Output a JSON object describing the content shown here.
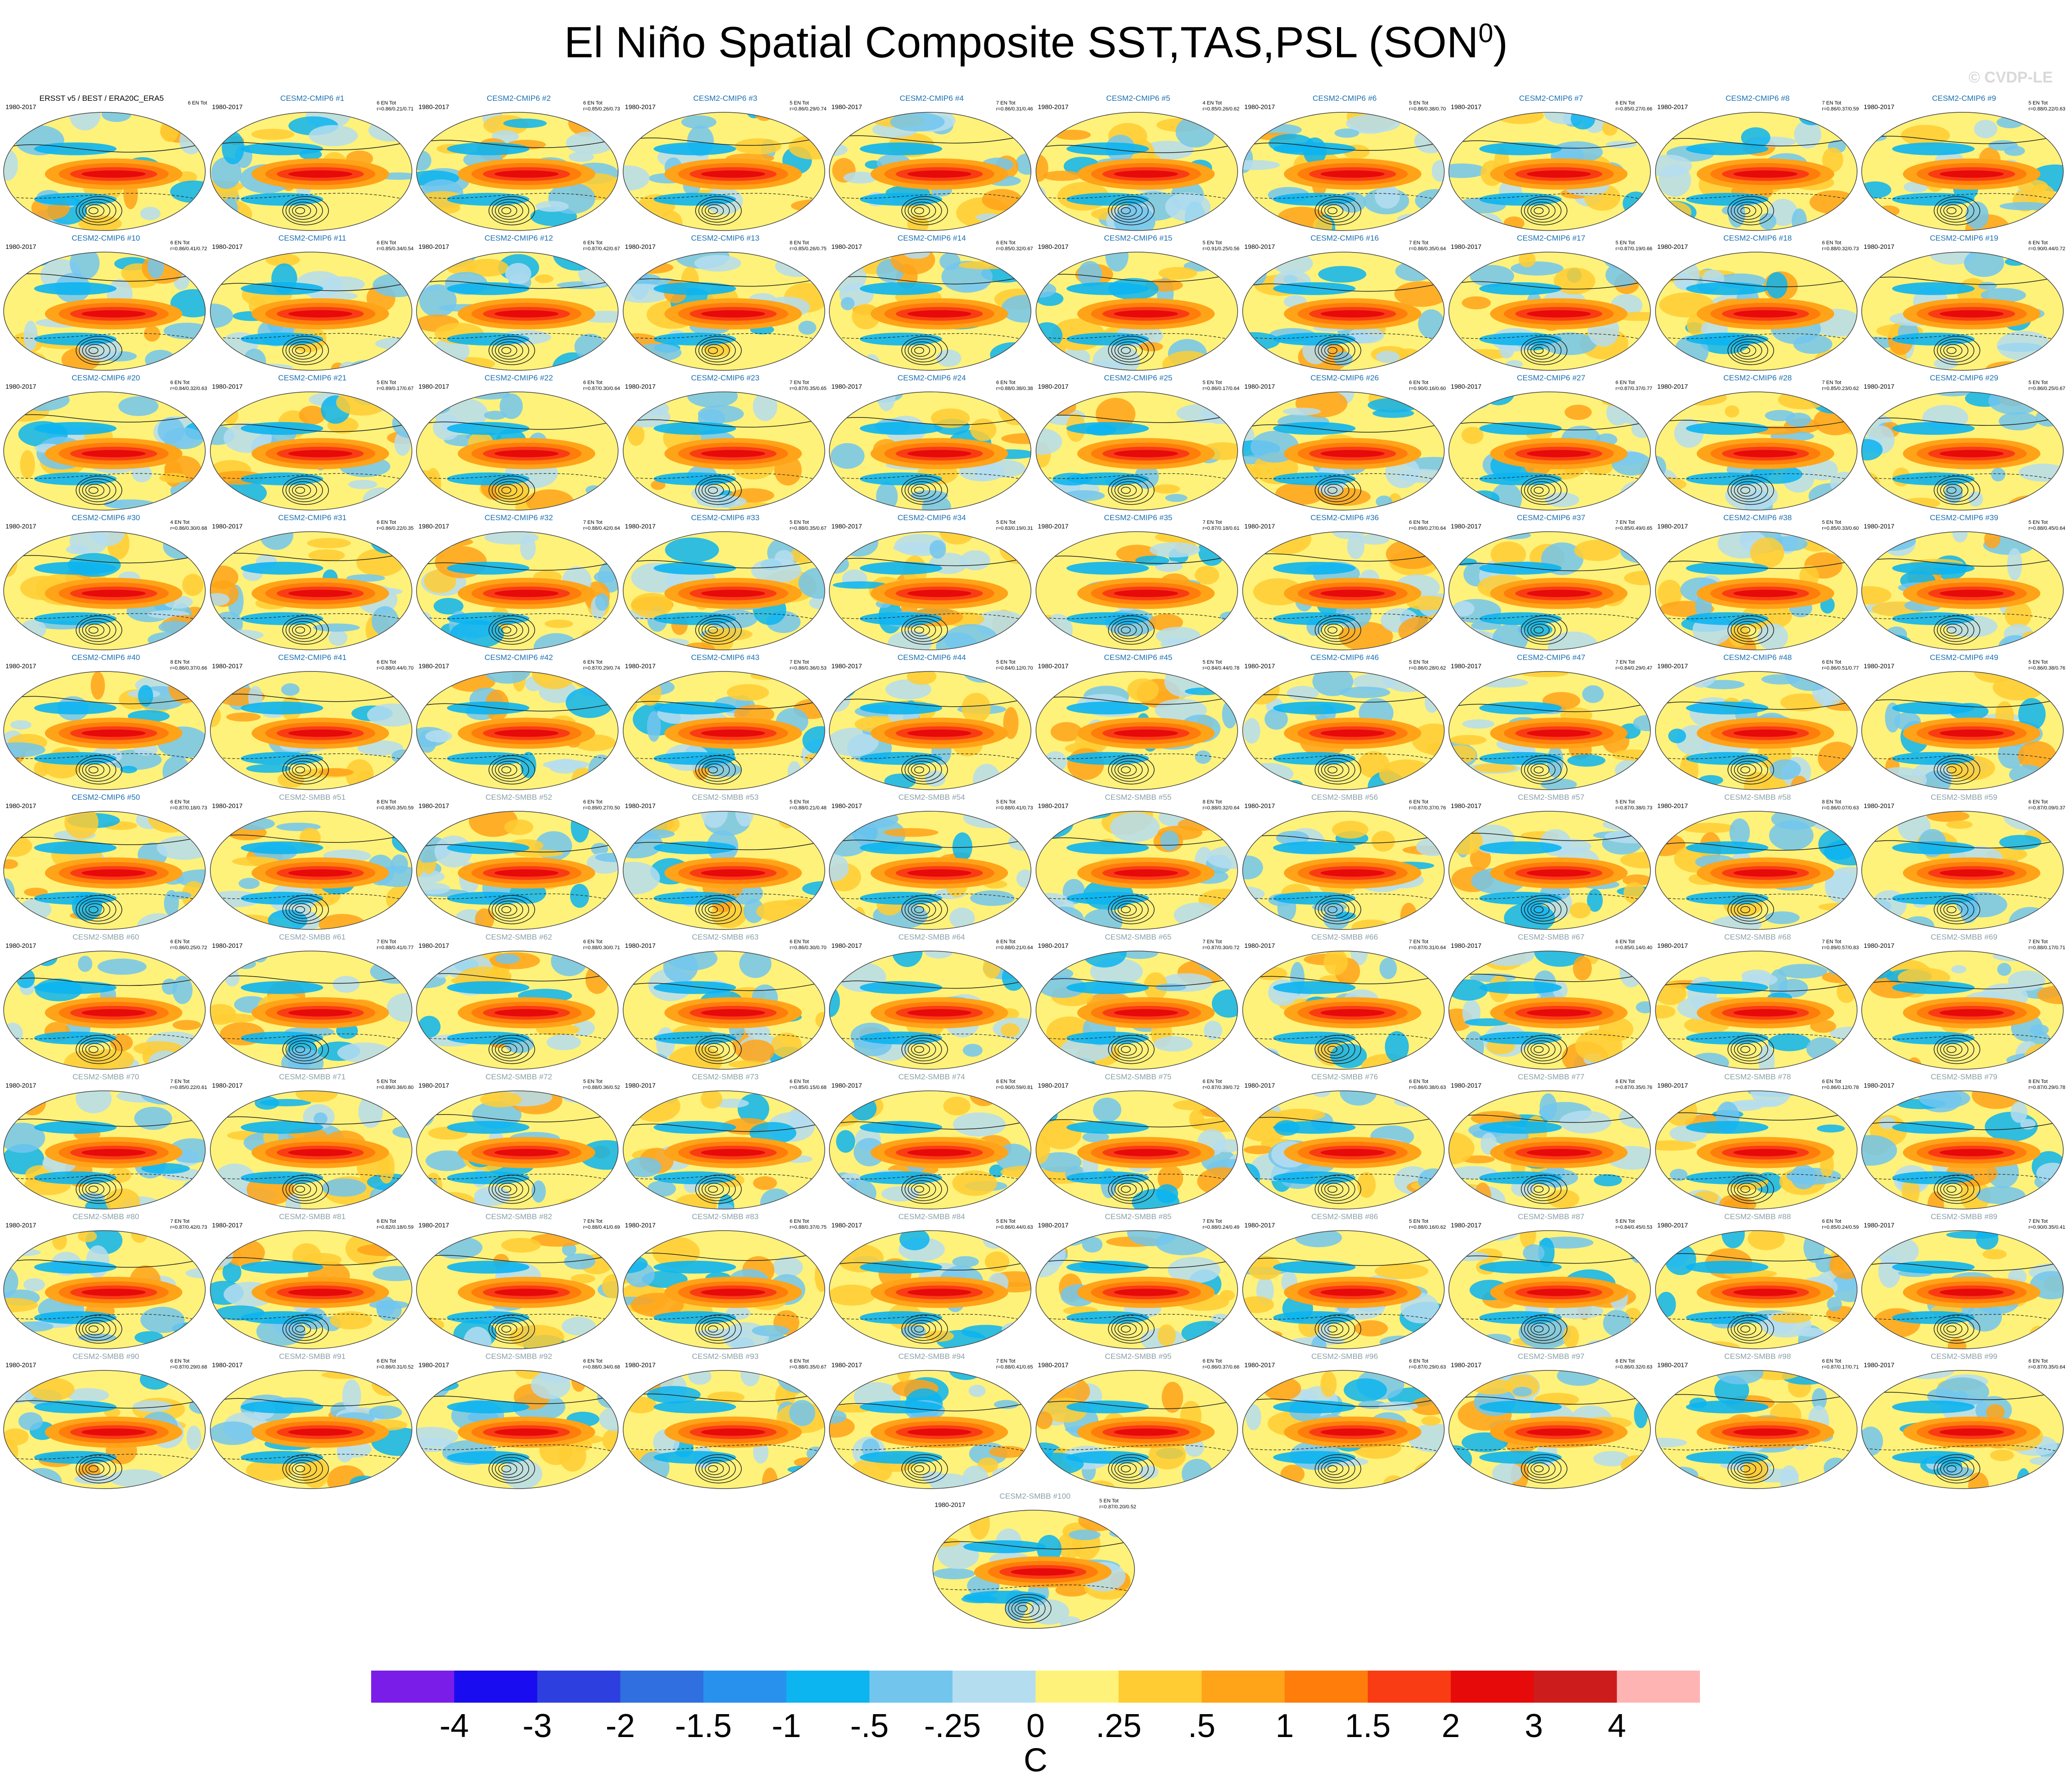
{
  "title": "El Niño Spatial Composite SST,TAS,PSL (SON",
  "title_superscript": "0",
  "title_close": ")",
  "watermark": "© CVDP-LE",
  "chart_data": {
    "type": "heatmap",
    "panel_count": 101,
    "map_projection": "global ellipse",
    "shading_variable": "SST/TAS composite",
    "contour_variable": "PSL composite",
    "panels": [
      {
        "title": "ERSST v5 / BEST / ERA20C_ERA5",
        "years": "1980-2017",
        "stats": "6 EN Tot",
        "kind": "obs"
      },
      {
        "title": "CESM2-CMIP6 #1",
        "years": "1980-2017",
        "stats": "6 EN Tot\nr=0.86/0.21/0.71",
        "kind": "cmip6"
      },
      {
        "title": "CESM2-CMIP6 #2",
        "years": "1980-2017",
        "stats": "6 EN Tot\nr=0.85/0.26/0.73",
        "kind": "cmip6"
      },
      {
        "title": "CESM2-CMIP6 #3",
        "years": "1980-2017",
        "stats": "5 EN Tot\nr=0.86/0.29/0.74",
        "kind": "cmip6"
      },
      {
        "title": "CESM2-CMIP6 #4",
        "years": "1980-2017",
        "stats": "7 EN Tot\nr=0.86/0.31/0.46",
        "kind": "cmip6"
      },
      {
        "title": "CESM2-CMIP6 #5",
        "years": "1980-2017",
        "stats": "4 EN Tot\nr=0.85/0.26/0.62",
        "kind": "cmip6"
      },
      {
        "title": "CESM2-CMIP6 #6",
        "years": "1980-2017",
        "stats": "5 EN Tot\nr=0.86/0.38/0.70",
        "kind": "cmip6"
      },
      {
        "title": "CESM2-CMIP6 #7",
        "years": "1980-2017",
        "stats": "6 EN Tot\nr=0.85/0.27/0.66",
        "kind": "cmip6"
      },
      {
        "title": "CESM2-CMIP6 #8",
        "years": "1980-2017",
        "stats": "7 EN Tot\nr=0.86/0.37/0.59",
        "kind": "cmip6"
      },
      {
        "title": "CESM2-CMIP6 #9",
        "years": "1980-2017",
        "stats": "5 EN Tot\nr=0.88/0.22/0.63",
        "kind": "cmip6"
      },
      {
        "title": "CESM2-CMIP6 #10",
        "years": "1980-2017",
        "stats": "6 EN Tot\nr=0.86/0.41/0.72",
        "kind": "cmip6"
      },
      {
        "title": "CESM2-CMIP6 #11",
        "years": "1980-2017",
        "stats": "6 EN Tot\nr=0.85/0.34/0.54",
        "kind": "cmip6"
      },
      {
        "title": "CESM2-CMIP6 #12",
        "years": "1980-2017",
        "stats": "6 EN Tot\nr=0.87/0.42/0.67",
        "kind": "cmip6"
      },
      {
        "title": "CESM2-CMIP6 #13",
        "years": "1980-2017",
        "stats": "8 EN Tot\nr=0.85/0.26/0.75",
        "kind": "cmip6"
      },
      {
        "title": "CESM2-CMIP6 #14",
        "years": "1980-2017",
        "stats": "6 EN Tot\nr=0.85/0.32/0.67",
        "kind": "cmip6"
      },
      {
        "title": "CESM2-CMIP6 #15",
        "years": "1980-2017",
        "stats": "5 EN Tot\nr=0.91/0.25/0.56",
        "kind": "cmip6"
      },
      {
        "title": "CESM2-CMIP6 #16",
        "years": "1980-2017",
        "stats": "7 EN Tot\nr=0.86/0.35/0.64",
        "kind": "cmip6"
      },
      {
        "title": "CESM2-CMIP6 #17",
        "years": "1980-2017",
        "stats": "5 EN Tot\nr=0.87/0.19/0.66",
        "kind": "cmip6"
      },
      {
        "title": "CESM2-CMIP6 #18",
        "years": "1980-2017",
        "stats": "6 EN Tot\nr=0.88/0.32/0.73",
        "kind": "cmip6"
      },
      {
        "title": "CESM2-CMIP6 #19",
        "years": "1980-2017",
        "stats": "6 EN Tot\nr=0.90/0.44/0.72",
        "kind": "cmip6"
      },
      {
        "title": "CESM2-CMIP6 #20",
        "years": "1980-2017",
        "stats": "6 EN Tot\nr=0.84/0.32/0.63",
        "kind": "cmip6"
      },
      {
        "title": "CESM2-CMIP6 #21",
        "years": "1980-2017",
        "stats": "5 EN Tot\nr=0.89/0.17/0.67",
        "kind": "cmip6"
      },
      {
        "title": "CESM2-CMIP6 #22",
        "years": "1980-2017",
        "stats": "6 EN Tot\nr=0.87/0.30/0.64",
        "kind": "cmip6"
      },
      {
        "title": "CESM2-CMIP6 #23",
        "years": "1980-2017",
        "stats": "7 EN Tot\nr=0.87/0.35/0.65",
        "kind": "cmip6"
      },
      {
        "title": "CESM2-CMIP6 #24",
        "years": "1980-2017",
        "stats": "6 EN Tot\nr=0.88/0.38/0.38",
        "kind": "cmip6"
      },
      {
        "title": "CESM2-CMIP6 #25",
        "years": "1980-2017",
        "stats": "5 EN Tot\nr=0.86/0.17/0.64",
        "kind": "cmip6"
      },
      {
        "title": "CESM2-CMIP6 #26",
        "years": "1980-2017",
        "stats": "6 EN Tot\nr=0.90/0.16/0.60",
        "kind": "cmip6"
      },
      {
        "title": "CESM2-CMIP6 #27",
        "years": "1980-2017",
        "stats": "6 EN Tot\nr=0.87/0.37/0.77",
        "kind": "cmip6"
      },
      {
        "title": "CESM2-CMIP6 #28",
        "years": "1980-2017",
        "stats": "7 EN Tot\nr=0.85/0.23/0.62",
        "kind": "cmip6"
      },
      {
        "title": "CESM2-CMIP6 #29",
        "years": "1980-2017",
        "stats": "5 EN Tot\nr=0.86/0.25/0.67",
        "kind": "cmip6"
      },
      {
        "title": "CESM2-CMIP6 #30",
        "years": "1980-2017",
        "stats": "4 EN Tot\nr=0.86/0.30/0.68",
        "kind": "cmip6"
      },
      {
        "title": "CESM2-CMIP6 #31",
        "years": "1980-2017",
        "stats": "6 EN Tot\nr=0.86/0.22/0.35",
        "kind": "cmip6"
      },
      {
        "title": "CESM2-CMIP6 #32",
        "years": "1980-2017",
        "stats": "7 EN Tot\nr=0.88/0.42/0.64",
        "kind": "cmip6"
      },
      {
        "title": "CESM2-CMIP6 #33",
        "years": "1980-2017",
        "stats": "5 EN Tot\nr=0.88/0.35/0.67",
        "kind": "cmip6"
      },
      {
        "title": "CESM2-CMIP6 #34",
        "years": "1980-2017",
        "stats": "5 EN Tot\nr=0.83/0.19/0.31",
        "kind": "cmip6"
      },
      {
        "title": "CESM2-CMIP6 #35",
        "years": "1980-2017",
        "stats": "7 EN Tot\nr=0.87/0.18/0.61",
        "kind": "cmip6"
      },
      {
        "title": "CESM2-CMIP6 #36",
        "years": "1980-2017",
        "stats": "6 EN Tot\nr=0.89/0.27/0.64",
        "kind": "cmip6"
      },
      {
        "title": "CESM2-CMIP6 #37",
        "years": "1980-2017",
        "stats": "7 EN Tot\nr=0.85/0.49/0.65",
        "kind": "cmip6"
      },
      {
        "title": "CESM2-CMIP6 #38",
        "years": "1980-2017",
        "stats": "5 EN Tot\nr=0.85/0.33/0.60",
        "kind": "cmip6"
      },
      {
        "title": "CESM2-CMIP6 #39",
        "years": "1980-2017",
        "stats": "5 EN Tot\nr=0.88/0.45/0.64",
        "kind": "cmip6"
      },
      {
        "title": "CESM2-CMIP6 #40",
        "years": "1980-2017",
        "stats": "8 EN Tot\nr=0.86/0.37/0.66",
        "kind": "cmip6"
      },
      {
        "title": "CESM2-CMIP6 #41",
        "years": "1980-2017",
        "stats": "6 EN Tot\nr=0.88/0.44/0.70",
        "kind": "cmip6"
      },
      {
        "title": "CESM2-CMIP6 #42",
        "years": "1980-2017",
        "stats": "6 EN Tot\nr=0.87/0.29/0.74",
        "kind": "cmip6"
      },
      {
        "title": "CESM2-CMIP6 #43",
        "years": "1980-2017",
        "stats": "7 EN Tot\nr=0.86/0.36/0.53",
        "kind": "cmip6"
      },
      {
        "title": "CESM2-CMIP6 #44",
        "years": "1980-2017",
        "stats": "5 EN Tot\nr=0.84/0.12/0.70",
        "kind": "cmip6"
      },
      {
        "title": "CESM2-CMIP6 #45",
        "years": "1980-2017",
        "stats": "5 EN Tot\nr=0.84/0.44/0.78",
        "kind": "cmip6"
      },
      {
        "title": "CESM2-CMIP6 #46",
        "years": "1980-2017",
        "stats": "5 EN Tot\nr=0.86/0.28/0.62",
        "kind": "cmip6"
      },
      {
        "title": "CESM2-CMIP6 #47",
        "years": "1980-2017",
        "stats": "7 EN Tot\nr=0.84/0.29/0.47",
        "kind": "cmip6"
      },
      {
        "title": "CESM2-CMIP6 #48",
        "years": "1980-2017",
        "stats": "6 EN Tot\nr=0.86/0.51/0.77",
        "kind": "cmip6"
      },
      {
        "title": "CESM2-CMIP6 #49",
        "years": "1980-2017",
        "stats": "5 EN Tot\nr=0.86/0.38/0.76",
        "kind": "cmip6"
      },
      {
        "title": "CESM2-CMIP6 #50",
        "years": "1980-2017",
        "stats": "6 EN Tot\nr=0.87/0.18/0.73",
        "kind": "cmip6"
      },
      {
        "title": "CESM2-SMBB #51",
        "years": "1980-2017",
        "stats": "8 EN Tot\nr=0.85/0.35/0.59",
        "kind": "smbb"
      },
      {
        "title": "CESM2-SMBB #52",
        "years": "1980-2017",
        "stats": "6 EN Tot\nr=0.89/0.27/0.50",
        "kind": "smbb"
      },
      {
        "title": "CESM2-SMBB #53",
        "years": "1980-2017",
        "stats": "5 EN Tot\nr=0.88/0.21/0.48",
        "kind": "smbb"
      },
      {
        "title": "CESM2-SMBB #54",
        "years": "1980-2017",
        "stats": "5 EN Tot\nr=0.88/0.41/0.73",
        "kind": "smbb"
      },
      {
        "title": "CESM2-SMBB #55",
        "years": "1980-2017",
        "stats": "8 EN Tot\nr=0.88/0.32/0.64",
        "kind": "smbb"
      },
      {
        "title": "CESM2-SMBB #56",
        "years": "1980-2017",
        "stats": "6 EN Tot\nr=0.87/0.37/0.76",
        "kind": "smbb"
      },
      {
        "title": "CESM2-SMBB #57",
        "years": "1980-2017",
        "stats": "5 EN Tot\nr=0.87/0.38/0.73",
        "kind": "smbb"
      },
      {
        "title": "CESM2-SMBB #58",
        "years": "1980-2017",
        "stats": "8 EN Tot\nr=0.86/0.07/0.63",
        "kind": "smbb"
      },
      {
        "title": "CESM2-SMBB #59",
        "years": "1980-2017",
        "stats": "6 EN Tot\nr=0.87/0.09/0.37",
        "kind": "smbb"
      },
      {
        "title": "CESM2-SMBB #60",
        "years": "1980-2017",
        "stats": "6 EN Tot\nr=0.86/0.25/0.72",
        "kind": "smbb"
      },
      {
        "title": "CESM2-SMBB #61",
        "years": "1980-2017",
        "stats": "7 EN Tot\nr=0.88/0.41/0.77",
        "kind": "smbb"
      },
      {
        "title": "CESM2-SMBB #62",
        "years": "1980-2017",
        "stats": "6 EN Tot\nr=0.88/0.30/0.71",
        "kind": "smbb"
      },
      {
        "title": "CESM2-SMBB #63",
        "years": "1980-2017",
        "stats": "6 EN Tot\nr=0.86/0.30/0.70",
        "kind": "smbb"
      },
      {
        "title": "CESM2-SMBB #64",
        "years": "1980-2017",
        "stats": "6 EN Tot\nr=0.88/0.21/0.64",
        "kind": "smbb"
      },
      {
        "title": "CESM2-SMBB #65",
        "years": "1980-2017",
        "stats": "7 EN Tot\nr=0.87/0.30/0.72",
        "kind": "smbb"
      },
      {
        "title": "CESM2-SMBB #66",
        "years": "1980-2017",
        "stats": "7 EN Tot\nr=0.87/0.31/0.64",
        "kind": "smbb"
      },
      {
        "title": "CESM2-SMBB #67",
        "years": "1980-2017",
        "stats": "6 EN Tot\nr=0.85/0.14/0.40",
        "kind": "smbb"
      },
      {
        "title": "CESM2-SMBB #68",
        "years": "1980-2017",
        "stats": "7 EN Tot\nr=0.89/0.57/0.83",
        "kind": "smbb"
      },
      {
        "title": "CESM2-SMBB #69",
        "years": "1980-2017",
        "stats": "7 EN Tot\nr=0.88/0.17/0.71",
        "kind": "smbb"
      },
      {
        "title": "CESM2-SMBB #70",
        "years": "1980-2017",
        "stats": "7 EN Tot\nr=0.85/0.22/0.61",
        "kind": "smbb"
      },
      {
        "title": "CESM2-SMBB #71",
        "years": "1980-2017",
        "stats": "5 EN Tot\nr=0.89/0.36/0.80",
        "kind": "smbb"
      },
      {
        "title": "CESM2-SMBB #72",
        "years": "1980-2017",
        "stats": "5 EN Tot\nr=0.88/0.36/0.52",
        "kind": "smbb"
      },
      {
        "title": "CESM2-SMBB #73",
        "years": "1980-2017",
        "stats": "6 EN Tot\nr=0.85/0.15/0.68",
        "kind": "smbb"
      },
      {
        "title": "CESM2-SMBB #74",
        "years": "1980-2017",
        "stats": "6 EN Tot\nr=0.90/0.59/0.81",
        "kind": "smbb"
      },
      {
        "title": "CESM2-SMBB #75",
        "years": "1980-2017",
        "stats": "6 EN Tot\nr=0.87/0.39/0.72",
        "kind": "smbb"
      },
      {
        "title": "CESM2-SMBB #76",
        "years": "1980-2017",
        "stats": "6 EN Tot\nr=0.86/0.38/0.63",
        "kind": "smbb"
      },
      {
        "title": "CESM2-SMBB #77",
        "years": "1980-2017",
        "stats": "6 EN Tot\nr=0.87/0.35/0.76",
        "kind": "smbb"
      },
      {
        "title": "CESM2-SMBB #78",
        "years": "1980-2017",
        "stats": "6 EN Tot\nr=0.86/0.12/0.78",
        "kind": "smbb"
      },
      {
        "title": "CESM2-SMBB #79",
        "years": "1980-2017",
        "stats": "8 EN Tot\nr=0.87/0.29/0.78",
        "kind": "smbb"
      },
      {
        "title": "CESM2-SMBB #80",
        "years": "1980-2017",
        "stats": "7 EN Tot\nr=0.87/0.42/0.73",
        "kind": "smbb"
      },
      {
        "title": "CESM2-SMBB #81",
        "years": "1980-2017",
        "stats": "6 EN Tot\nr=0.82/0.18/0.59",
        "kind": "smbb"
      },
      {
        "title": "CESM2-SMBB #82",
        "years": "1980-2017",
        "stats": "7 EN Tot\nr=0.88/0.41/0.69",
        "kind": "smbb"
      },
      {
        "title": "CESM2-SMBB #83",
        "years": "1980-2017",
        "stats": "6 EN Tot\nr=0.88/0.37/0.75",
        "kind": "smbb"
      },
      {
        "title": "CESM2-SMBB #84",
        "years": "1980-2017",
        "stats": "5 EN Tot\nr=0.86/0.44/0.63",
        "kind": "smbb"
      },
      {
        "title": "CESM2-SMBB #85",
        "years": "1980-2017",
        "stats": "7 EN Tot\nr=0.88/0.24/0.49",
        "kind": "smbb"
      },
      {
        "title": "CESM2-SMBB #86",
        "years": "1980-2017",
        "stats": "5 EN Tot\nr=0.88/0.16/0.62",
        "kind": "smbb"
      },
      {
        "title": "CESM2-SMBB #87",
        "years": "1980-2017",
        "stats": "5 EN Tot\nr=0.84/0.45/0.53",
        "kind": "smbb"
      },
      {
        "title": "CESM2-SMBB #88",
        "years": "1980-2017",
        "stats": "6 EN Tot\nr=0.85/0.24/0.59",
        "kind": "smbb"
      },
      {
        "title": "CESM2-SMBB #89",
        "years": "1980-2017",
        "stats": "7 EN Tot\nr=0.90/0.35/0.41",
        "kind": "smbb"
      },
      {
        "title": "CESM2-SMBB #90",
        "years": "1980-2017",
        "stats": "6 EN Tot\nr=0.87/0.29/0.68",
        "kind": "smbb"
      },
      {
        "title": "CESM2-SMBB #91",
        "years": "1980-2017",
        "stats": "6 EN Tot\nr=0.86/0.31/0.52",
        "kind": "smbb"
      },
      {
        "title": "CESM2-SMBB #92",
        "years": "1980-2017",
        "stats": "6 EN Tot\nr=0.88/0.34/0.68",
        "kind": "smbb"
      },
      {
        "title": "CESM2-SMBB #93",
        "years": "1980-2017",
        "stats": "6 EN Tot\nr=0.88/0.35/0.67",
        "kind": "smbb"
      },
      {
        "title": "CESM2-SMBB #94",
        "years": "1980-2017",
        "stats": "7 EN Tot\nr=0.88/0.41/0.65",
        "kind": "smbb"
      },
      {
        "title": "CESM2-SMBB #95",
        "years": "1980-2017",
        "stats": "6 EN Tot\nr=0.86/0.37/0.66",
        "kind": "smbb"
      },
      {
        "title": "CESM2-SMBB #96",
        "years": "1980-2017",
        "stats": "6 EN Tot\nr=0.87/0.29/0.63",
        "kind": "smbb"
      },
      {
        "title": "CESM2-SMBB #97",
        "years": "1980-2017",
        "stats": "6 EN Tot\nr=0.86/0.32/0.63",
        "kind": "smbb"
      },
      {
        "title": "CESM2-SMBB #98",
        "years": "1980-2017",
        "stats": "6 EN Tot\nr=0.87/0.17/0.71",
        "kind": "smbb"
      },
      {
        "title": "CESM2-SMBB #99",
        "years": "1980-2017",
        "stats": "6 EN Tot\nr=0.87/0.35/0.64",
        "kind": "smbb"
      },
      {
        "title": "CESM2-SMBB #100",
        "years": "1980-2017",
        "stats": "5 EN Tot\nr=0.87/0.20/0.52",
        "kind": "smbb"
      }
    ],
    "colorbar": {
      "units": "C",
      "labels": [
        "-4",
        "-3",
        "-2",
        "-1.5",
        "-1",
        "-.5",
        "-.25",
        "0",
        ".25",
        ".5",
        "1",
        "1.5",
        "2",
        "3",
        "4"
      ],
      "colors": [
        "#7a1de8",
        "#1a0cf0",
        "#2e3fe0",
        "#2f6fe0",
        "#2891ee",
        "#0cb4f0",
        "#72c6ee",
        "#b5ddf0",
        "#fff27a",
        "#ffcc33",
        "#ffa319",
        "#ff7d0a",
        "#fa3c14",
        "#e60a0a",
        "#cd1c1c",
        "#ffb4b4"
      ]
    }
  }
}
